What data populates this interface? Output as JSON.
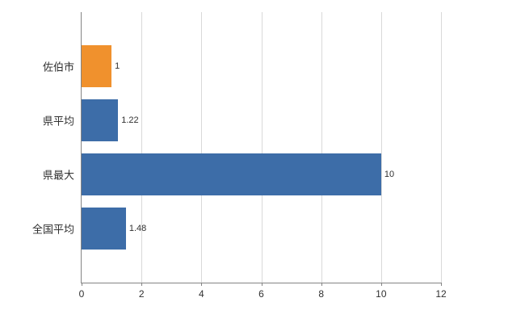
{
  "chart_data": {
    "type": "bar",
    "orientation": "horizontal",
    "categories": [
      "佐伯市",
      "県平均",
      "県最大",
      "全国平均"
    ],
    "values": [
      1,
      1.22,
      10,
      1.48
    ],
    "value_labels": [
      "1",
      "1.22",
      "10",
      "1.48"
    ],
    "bar_colors": [
      "#f0912d",
      "#3d6da8",
      "#3d6da8",
      "#3d6da8"
    ],
    "x_ticks": [
      0,
      2,
      4,
      6,
      8,
      10,
      12
    ],
    "xlim": [
      0,
      12
    ],
    "grid": "vertical",
    "legend": "none",
    "background": "#ffffff",
    "axis_color": "#848484",
    "gridline_color": "#d9d9d9"
  }
}
